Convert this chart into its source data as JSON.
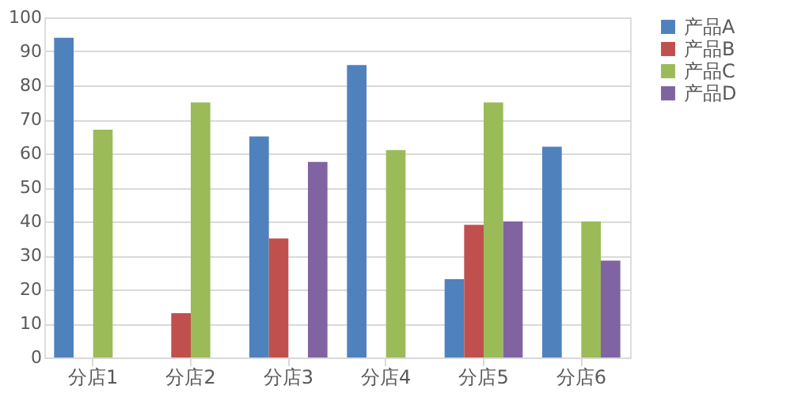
{
  "chart_data": {
    "type": "bar",
    "categories": [
      "分店1",
      "分店2",
      "分店3",
      "分店4",
      "分店5",
      "分店6"
    ],
    "series": [
      {
        "name": "产品A",
        "color": "#4f81bd",
        "values": [
          94,
          null,
          65,
          86,
          23,
          62
        ]
      },
      {
        "name": "产品B",
        "color": "#c0504d",
        "values": [
          null,
          13,
          35,
          null,
          39,
          null
        ]
      },
      {
        "name": "产品C",
        "color": "#9bbb59",
        "values": [
          67,
          75,
          null,
          61,
          75,
          40
        ]
      },
      {
        "name": "产品D",
        "color": "#8064a2",
        "values": [
          null,
          null,
          57.5,
          null,
          40,
          28.5
        ]
      }
    ],
    "ylim": [
      0,
      100
    ],
    "yticks": [
      0,
      10,
      20,
      30,
      40,
      50,
      60,
      70,
      80,
      90,
      100
    ],
    "grid": "y",
    "legend": "right"
  }
}
